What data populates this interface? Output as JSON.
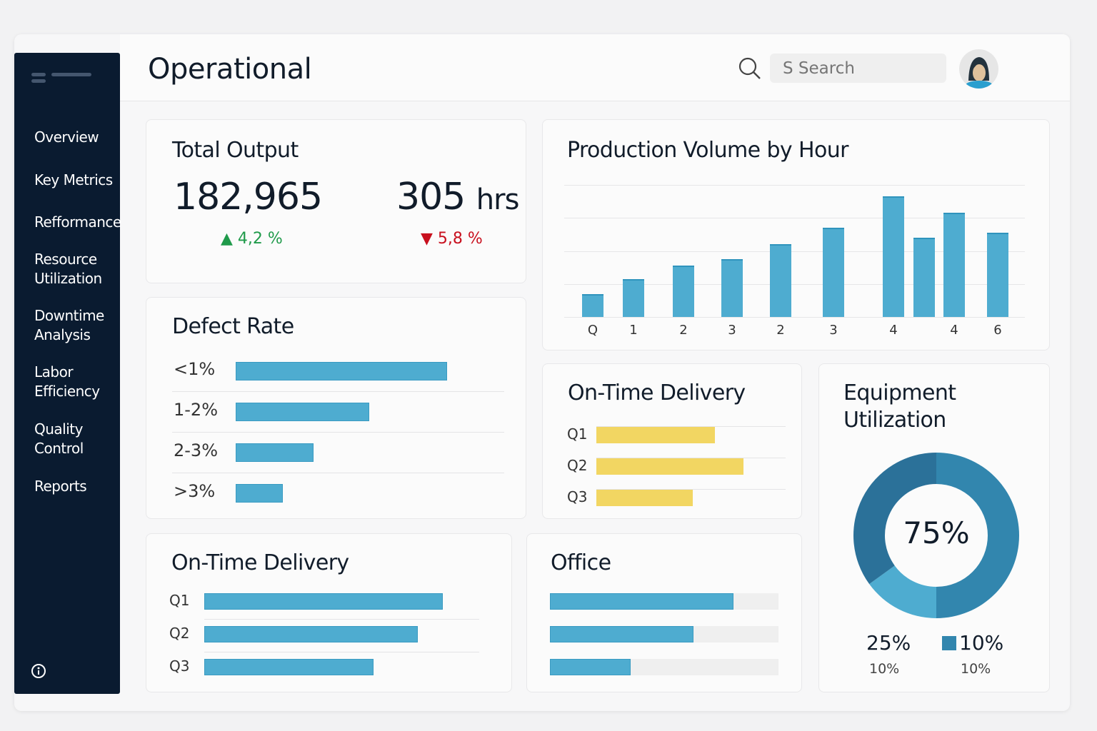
{
  "header": {
    "title": "Operational",
    "search_placeholder": "S Search"
  },
  "sidebar": {
    "items": [
      {
        "label": "Overview"
      },
      {
        "label": "Key Metrics"
      },
      {
        "label": "Refformance"
      },
      {
        "label": "Resource Utilization"
      },
      {
        "label": "Downtime Analysis"
      },
      {
        "label": "Labor Efficiency"
      },
      {
        "label": "Quality Control"
      },
      {
        "label": "Reports"
      }
    ]
  },
  "total_output": {
    "title": "Total Output",
    "value": "182,965",
    "value_delta": "4,2 %",
    "hours": "305",
    "hours_unit": "hrs",
    "hours_delta": "5,8 %",
    "colors": {
      "up": "#1f9a4a",
      "down": "#c8101e"
    }
  },
  "defect_rate": {
    "title": "Defect Rate",
    "rows": [
      {
        "label": "<1%",
        "value": 76
      },
      {
        "label": "1-2%",
        "value": 48
      },
      {
        "label": "2-3%",
        "value": 28
      },
      {
        "label": ">3%",
        "value": 17
      }
    ]
  },
  "on_time_small": {
    "title": "On-Time Delivery",
    "rows": [
      {
        "label": "Q1",
        "value": 54
      },
      {
        "label": "Q2",
        "value": 67
      },
      {
        "label": "Q3",
        "value": 44
      }
    ]
  },
  "on_time_large": {
    "title": "On-Time Delivery",
    "rows": [
      {
        "label": "Q1",
        "value": 86
      },
      {
        "label": "Q2",
        "value": 77
      },
      {
        "label": "Q3",
        "value": 61
      }
    ]
  },
  "office": {
    "title": "Office",
    "rows": [
      {
        "value": 82
      },
      {
        "value": 64
      },
      {
        "value": 36
      }
    ]
  },
  "equipment": {
    "title": "Equipment Utilization",
    "center": "75%",
    "legend": [
      {
        "value": "25%",
        "sub": "10%"
      },
      {
        "value": "10%",
        "sub": "10%"
      }
    ],
    "segments": [
      {
        "value": 50,
        "color": "#3286ae"
      },
      {
        "value": 15,
        "color": "#4eacd0"
      },
      {
        "value": 35,
        "color": "#2b7199"
      }
    ]
  },
  "chart_data": {
    "type": "bar",
    "title": "Production Volume by Hour",
    "categories": [
      "Q",
      "1",
      "2",
      "3",
      "2",
      "3",
      "4",
      "",
      "4",
      "6"
    ],
    "values": [
      0.7,
      1.15,
      1.55,
      1.75,
      2.2,
      2.7,
      3.65,
      2.4,
      3.15,
      2.55
    ],
    "ylim": [
      0,
      4
    ],
    "grid": true,
    "color": "#4eacd0"
  }
}
